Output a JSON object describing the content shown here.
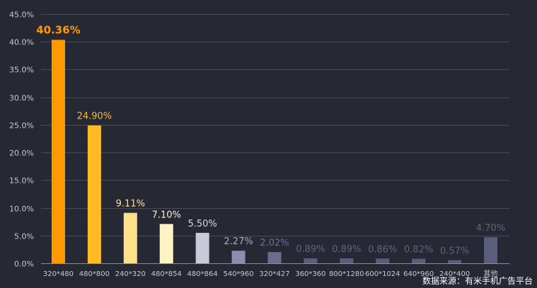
{
  "chart_data": {
    "type": "bar",
    "categories": [
      "320*480",
      "480*800",
      "240*320",
      "480*854",
      "480*864",
      "540*960",
      "320*427",
      "360*360",
      "800*1280",
      "600*1024",
      "640*960",
      "240*400",
      "其他"
    ],
    "values": [
      40.36,
      24.9,
      9.11,
      7.1,
      5.5,
      2.27,
      2.02,
      0.89,
      0.89,
      0.86,
      0.82,
      0.57,
      4.7
    ],
    "value_labels": [
      "40.36%",
      "24.90%",
      "9.11%",
      "7.10%",
      "5.50%",
      "2.27%",
      "2.02%",
      "0.89%",
      "0.89%",
      "0.86%",
      "0.82%",
      "0.57%",
      "4.70%"
    ],
    "bar_colors": [
      "#ff9900",
      "#ffbb22",
      "#ffe08a",
      "#fff2c4",
      "#c9cad8",
      "#8a8fae",
      "#6a6e8c",
      "#5a5e7a",
      "#5a5e7a",
      "#5a5e7a",
      "#5a5e7a",
      "#5a5e7a",
      "#5a5e7a"
    ],
    "label_colors": [
      "#ff9a00",
      "#ffb830",
      "#ffe49a",
      "#fff2cc",
      "#d8d8e4",
      "#a8acc4",
      "#6e7290",
      "#60647e",
      "#60647e",
      "#60647e",
      "#60647e",
      "#60647e",
      "#60647e"
    ],
    "ylim": [
      0,
      45
    ],
    "yticks": [
      0,
      5,
      10,
      15,
      20,
      25,
      30,
      35,
      40,
      45
    ],
    "ytick_labels": [
      "0.0%",
      "5.0%",
      "10.0%",
      "15.0%",
      "20.0%",
      "25.0%",
      "30.0%",
      "35.0%",
      "40.0%",
      "45.0%"
    ],
    "grid": true,
    "title": "",
    "xlabel": "",
    "ylabel": ""
  },
  "source": "数据来源：有米手机广告平台"
}
